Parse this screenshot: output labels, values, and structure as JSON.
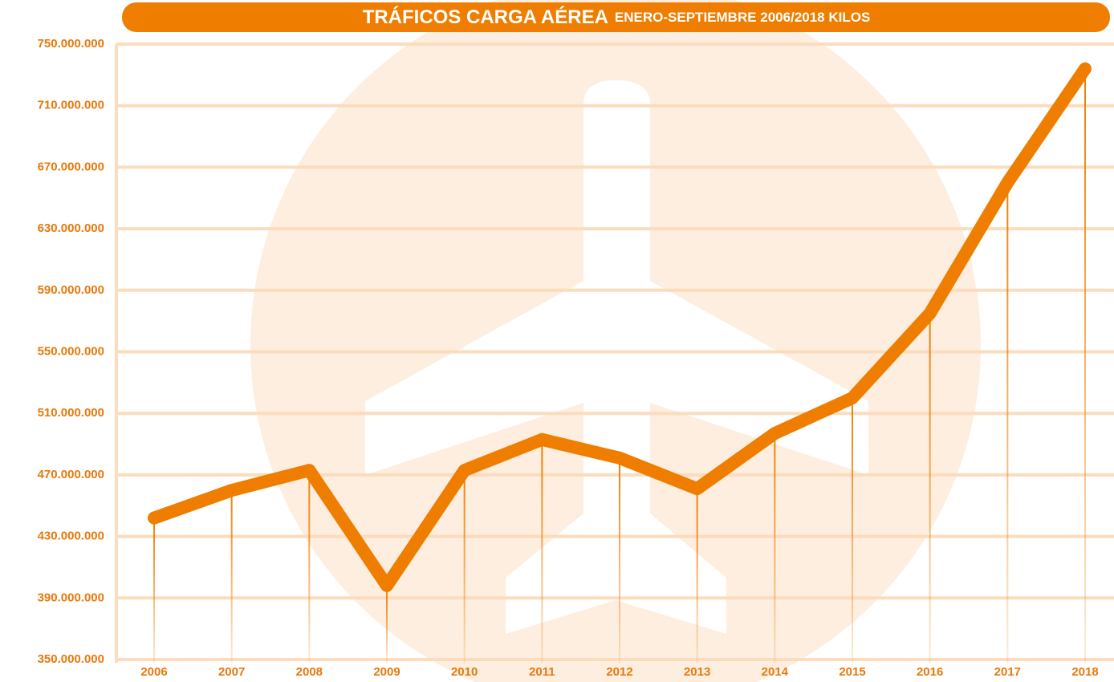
{
  "chart_data": {
    "type": "line",
    "title": "TRÁFICOS CARGA AÉREA",
    "subtitle": "ENERO-SEPTIEMBRE 2006/2018 KILOS",
    "categories": [
      "2006",
      "2007",
      "2008",
      "2009",
      "2010",
      "2011",
      "2012",
      "2013",
      "2014",
      "2015",
      "2016",
      "2017",
      "2018"
    ],
    "values": [
      442000000,
      460000000,
      473000000,
      398000000,
      473000000,
      493000000,
      481000000,
      461000000,
      497000000,
      520000000,
      575000000,
      660000000,
      734000000
    ],
    "color": "#ef7d00",
    "ylim": [
      350000000,
      750000000
    ],
    "yticks": [
      {
        "value": 350000000,
        "label": "350.000.000"
      },
      {
        "value": 390000000,
        "label": "390.000.000"
      },
      {
        "value": 430000000,
        "label": "430.000.000"
      },
      {
        "value": 470000000,
        "label": "470.000.000"
      },
      {
        "value": 510000000,
        "label": "510.000.000"
      },
      {
        "value": 550000000,
        "label": "550.000.000"
      },
      {
        "value": 590000000,
        "label": "590.000.000"
      },
      {
        "value": 630000000,
        "label": "630.000.000"
      },
      {
        "value": 670000000,
        "label": "670.000.000"
      },
      {
        "value": 710000000,
        "label": "710.000.000"
      },
      {
        "value": 750000000,
        "label": "750.000.000"
      }
    ],
    "grid": true
  }
}
